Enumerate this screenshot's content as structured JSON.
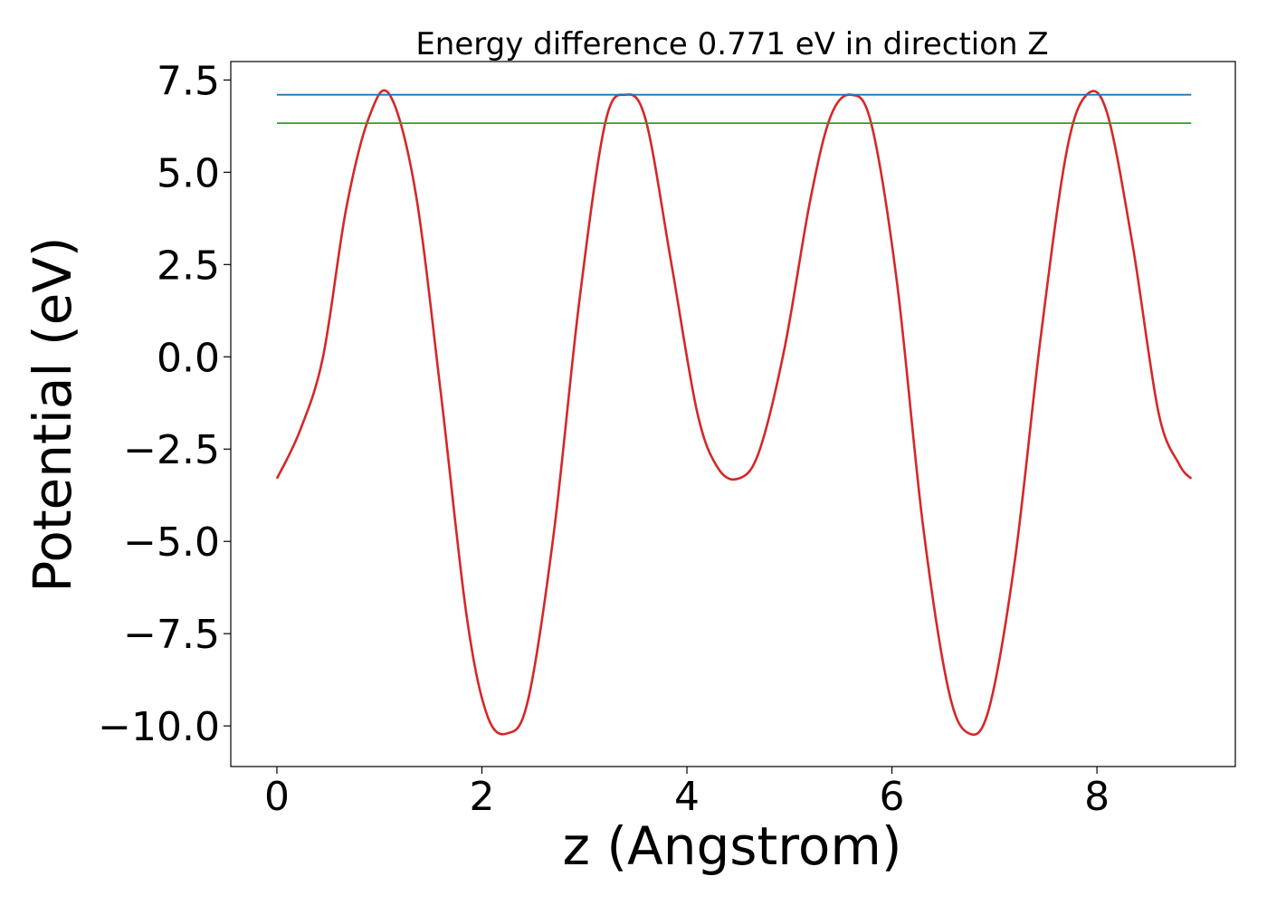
{
  "chart_data": {
    "type": "line",
    "title": "Energy difference 0.771 eV in direction Z",
    "xlabel": "z (Angstrom)",
    "ylabel": "Potential (eV)",
    "xlim": [
      -0.45,
      9.35
    ],
    "ylim": [
      -11.1,
      8.0
    ],
    "xticks": [
      0,
      2,
      4,
      6,
      8
    ],
    "yticks": [
      -10.0,
      -7.5,
      -5.0,
      -2.5,
      0.0,
      2.5,
      5.0,
      7.5
    ],
    "grid": false,
    "series": [
      {
        "color": "#d62728",
        "x": [
          0.0,
          0.225,
          0.45,
          0.675,
          0.9,
          1.1,
          1.35,
          1.6,
          1.85,
          2.05,
          2.25,
          2.45,
          2.7,
          2.95,
          3.2,
          3.4,
          3.6,
          3.85,
          4.1,
          4.3,
          4.5,
          4.7,
          4.95,
          5.2,
          5.4,
          5.6,
          5.8,
          6.05,
          6.3,
          6.55,
          6.75,
          6.95,
          7.2,
          7.45,
          7.7,
          7.9,
          8.1,
          8.35,
          8.6,
          8.8,
          8.92
        ],
        "y": [
          -3.3,
          -2.0,
          0.0,
          4.0,
          6.5,
          7.1,
          4.5,
          -1.0,
          -7.0,
          -9.7,
          -10.2,
          -9.3,
          -4.8,
          1.5,
          6.3,
          7.1,
          6.4,
          2.5,
          -1.5,
          -3.0,
          -3.3,
          -2.6,
          0.2,
          4.2,
          6.5,
          7.1,
          6.3,
          2.0,
          -4.5,
          -9.0,
          -10.2,
          -9.5,
          -5.5,
          0.5,
          5.5,
          7.1,
          6.6,
          3.0,
          -1.5,
          -2.9,
          -3.3
        ]
      },
      {
        "color": "#1f77b4",
        "x": [
          0.0,
          8.92
        ],
        "y": [
          7.1,
          7.1
        ]
      },
      {
        "color": "#2ca02c",
        "x": [
          0.0,
          8.92
        ],
        "y": [
          6.33,
          6.33
        ]
      }
    ]
  }
}
